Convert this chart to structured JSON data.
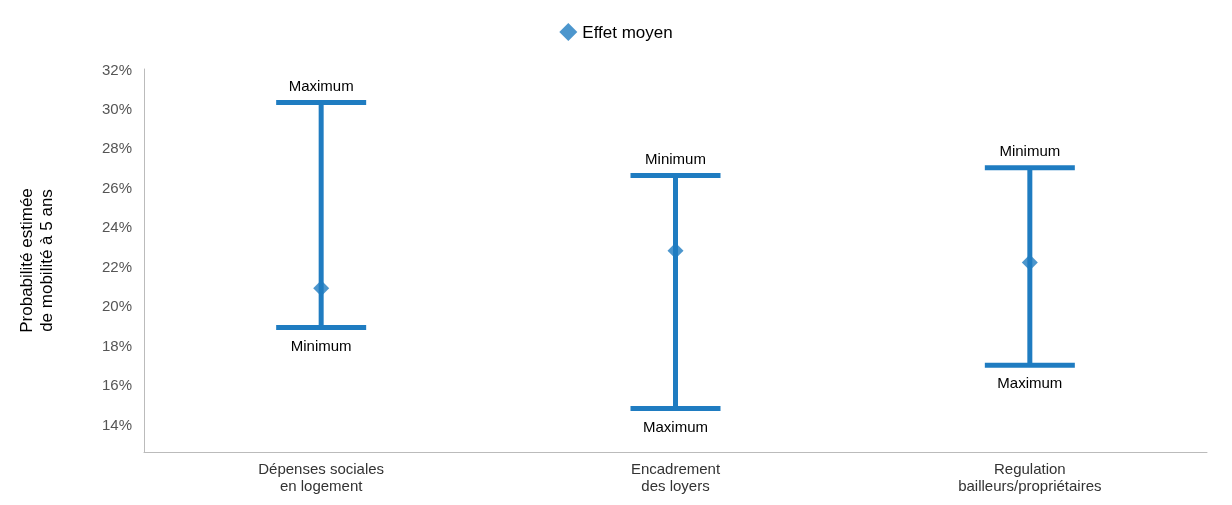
{
  "chart_data": {
    "type": "scatter",
    "categories": [
      "Dépenses sociales\nen logement",
      "Encadrement\ndes loyers",
      "Regulation\nbailleurs/propriétaires"
    ],
    "series": [
      {
        "name": "Effet moyen",
        "color": "#1f7cc1",
        "values": [
          20.9,
          22.8,
          22.2
        ],
        "errors": [
          [
            18.9,
            30.3
          ],
          [
            14.8,
            26.6
          ],
          [
            17.0,
            27.0
          ]
        ]
      }
    ],
    "ylabel": "Probabilité estimée\nde mobilité à 5 ans",
    "ylim": [
      12.6,
      32
    ],
    "yticks": [
      {
        "value": 14,
        "label": "14%"
      },
      {
        "value": 16,
        "label": "16%"
      },
      {
        "value": 18,
        "label": "18%"
      },
      {
        "value": 20,
        "label": "20%"
      },
      {
        "value": 22,
        "label": "22%"
      },
      {
        "value": 24,
        "label": "24%"
      },
      {
        "value": 26,
        "label": "26%"
      },
      {
        "value": 28,
        "label": "28%"
      },
      {
        "value": 30,
        "label": "30%"
      },
      {
        "value": 32,
        "label": "32%"
      }
    ],
    "annotations": [
      {
        "text": "Maximum",
        "x": "Dépenses sociales\nen logement",
        "y": 30.3
      },
      {
        "text": "Minimum",
        "x": "Dépenses sociales\nen logement",
        "y": 18.9
      },
      {
        "text": "Minimum",
        "x": "Encadrement\ndes loyers",
        "y": 26.6
      },
      {
        "text": "Maximum",
        "x": "Encadrement\ndes loyers",
        "y": 14.8
      },
      {
        "text": "Minimum",
        "x": "Regulation\nbailleurs/propriétaires",
        "y": 27.0
      },
      {
        "text": "Maximum",
        "x": "Regulation\nbailleurs/propriétaires",
        "y": 17.0
      }
    ],
    "marker": "diamond",
    "legend": "top",
    "grid": false
  }
}
